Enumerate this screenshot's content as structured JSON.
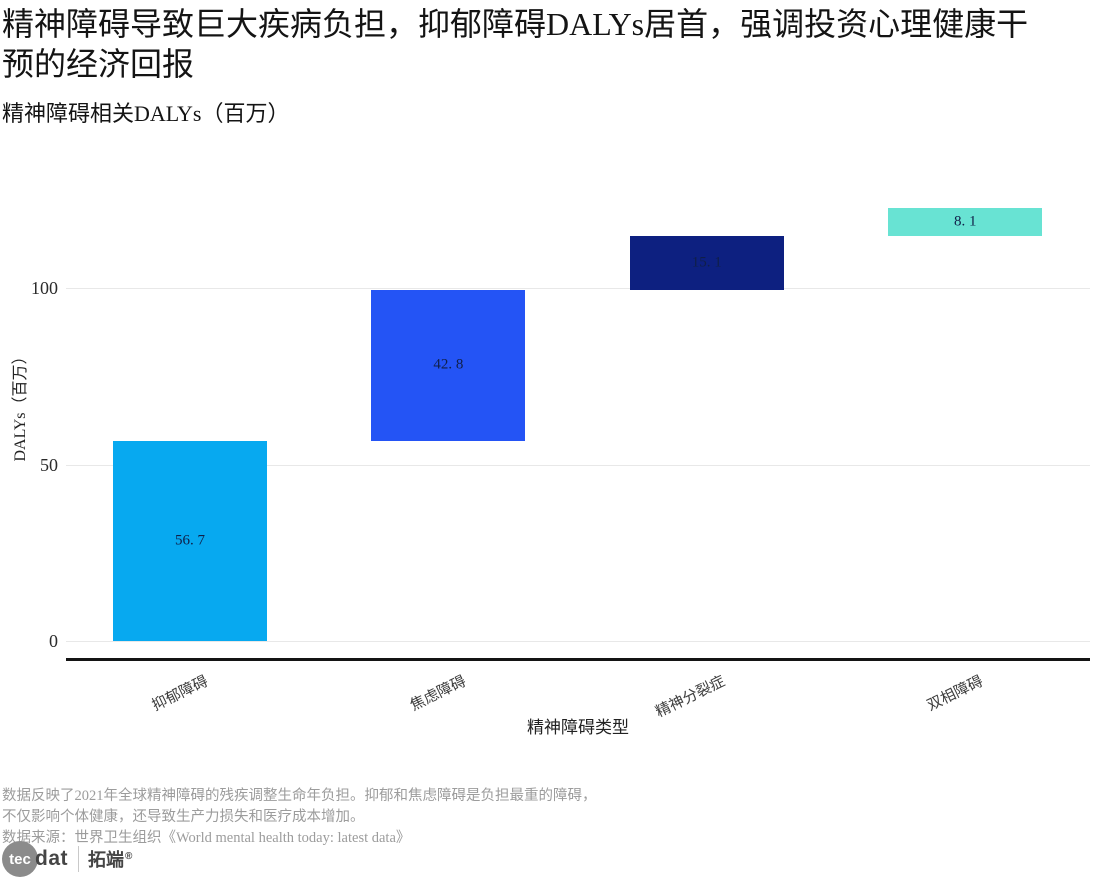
{
  "header": {
    "title": "精神障碍导致巨大疾病负担，抑郁障碍DALYs居首，强调投资心理健康干预的经济回报",
    "subtitle": "精神障碍相关DALYs（百万）"
  },
  "chart_data": {
    "type": "bar",
    "subtype": "waterfall",
    "title": "精神障碍相关DALYs（百万）",
    "categories": [
      "抑郁障碍",
      "焦虑障碍",
      "精神分裂症",
      "双相障碍"
    ],
    "values": [
      56.7,
      42.8,
      15.1,
      8.1
    ],
    "cumulative_start": [
      0,
      56.7,
      99.5,
      114.6
    ],
    "value_labels": [
      "56. 7",
      "42. 8",
      "15. 1",
      "8. 1"
    ],
    "bar_colors": [
      "#07a9f0",
      "#2454f5",
      "#0d2080",
      "#68e3d3"
    ],
    "value_label_color": "#101f48",
    "xlabel": "精神障碍类型",
    "ylabel": "DALYs（百万）",
    "yticks": [
      0,
      50,
      100
    ],
    "ylim": [
      0,
      131
    ],
    "grid": "horizontal",
    "legend": "none"
  },
  "footer": {
    "note_line1": "数据反映了2021年全球精神障碍的残疾调整生命年负担。抑郁和焦虑障碍是负担最重的障碍，",
    "note_line2": "不仅影响个体健康，还导致生产力损失和医疗成本增加。",
    "source": "数据来源：世界卫生组织《World mental health today: latest data》"
  },
  "logo": {
    "circle_text": "tec",
    "suffix": "dat",
    "brand_cn": "拓端",
    "registered": "®"
  }
}
